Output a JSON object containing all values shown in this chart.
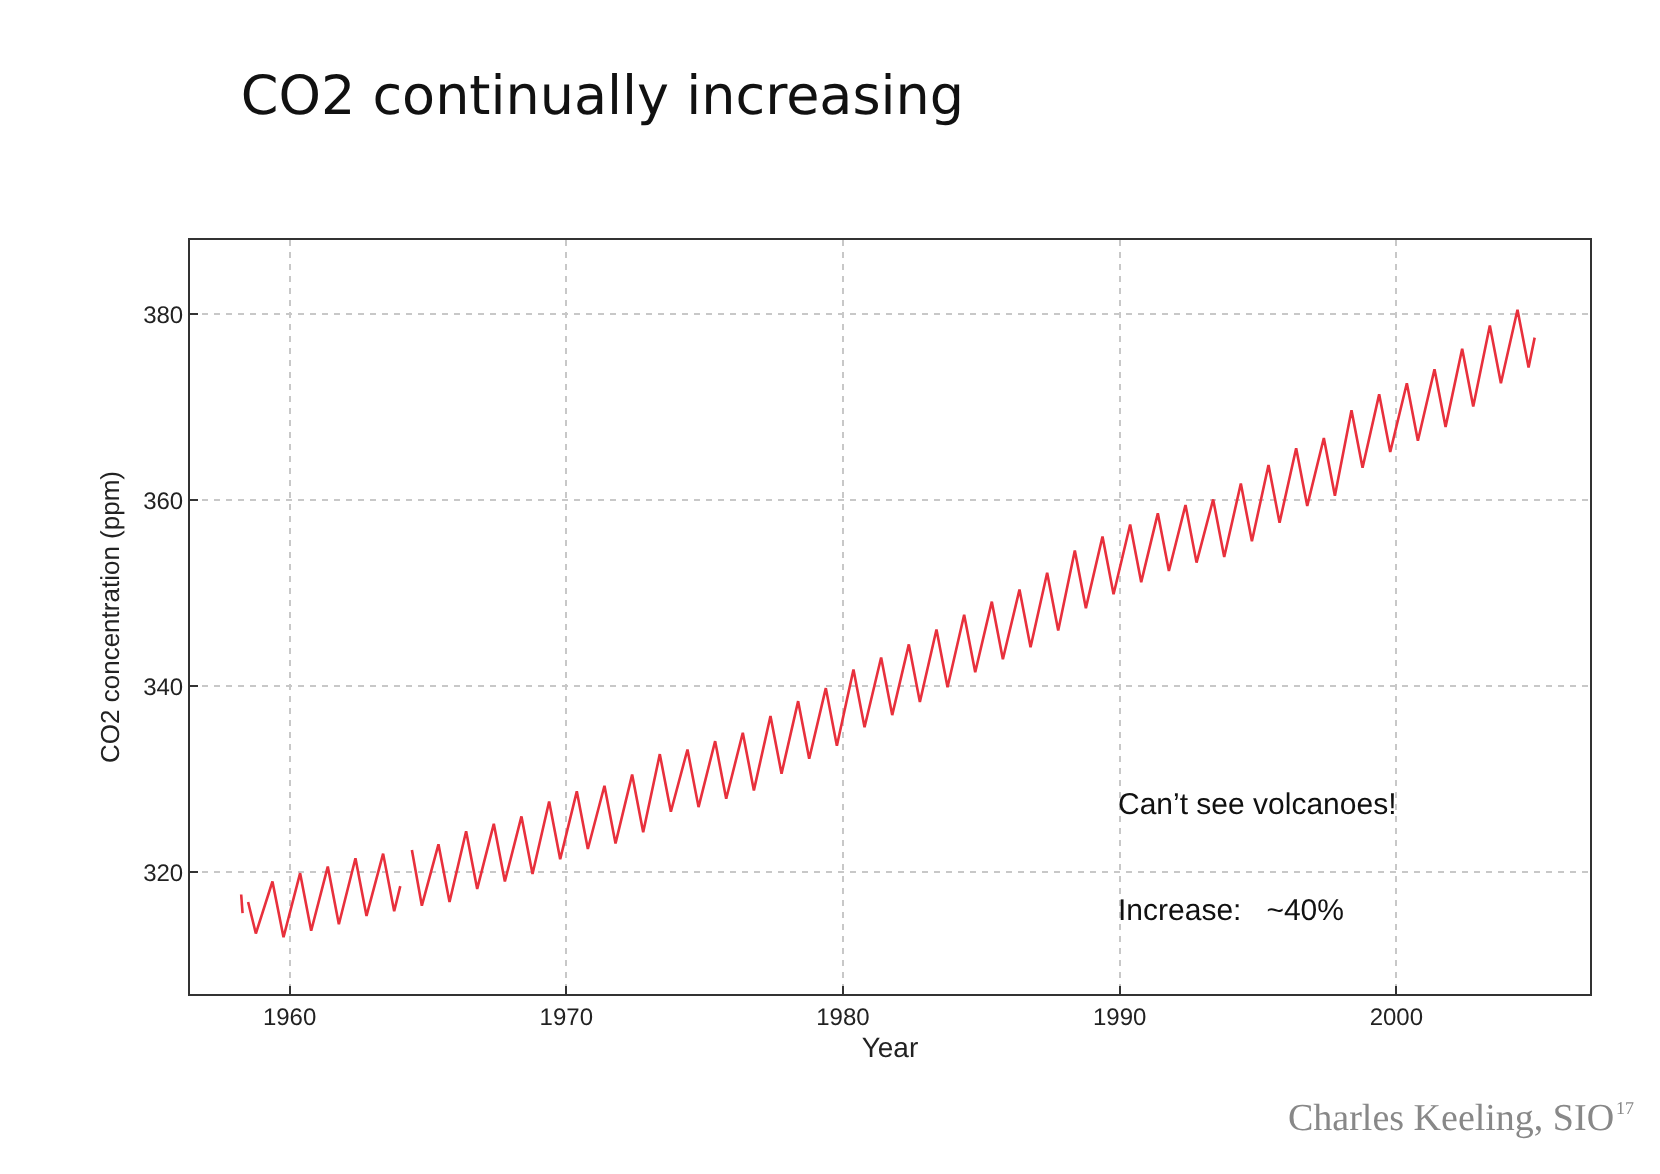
{
  "chart_data": {
    "type": "line",
    "title": "CO2 continually increasing",
    "xlabel": "Year",
    "ylabel": "CO2 concentration (ppm)",
    "annotations": [
      "Can’t see volcanoes!",
      "Increase:   ~40%",
      "Charles Keeling, SIO",
      "17"
    ],
    "xlim": [
      1956.4,
      2007
    ],
    "xticks": [
      1960,
      1970,
      1980,
      1990,
      2000
    ],
    "ylim": [
      306.9,
      388
    ],
    "yticks": [
      320,
      340,
      360,
      380
    ],
    "grid": true,
    "marker": "none",
    "line_style": "solid",
    "series": [
      {
        "color": "#e8303c",
        "x": [
          1958.25,
          1958.3,
          null,
          1958.5,
          1958.78,
          1959.38,
          1959.78,
          1960.38,
          1960.78,
          1961.38,
          1961.78,
          1962.38,
          1962.78,
          1963.38,
          1963.78,
          1964.0,
          null,
          1964.42,
          1964.78,
          1965.38,
          1965.78,
          1966.38,
          1966.78,
          1967.38,
          1967.78,
          1968.38,
          1968.78,
          1969.38,
          1969.78,
          1970.38,
          1970.78,
          1971.38,
          1971.78,
          1972.38,
          1972.78,
          1973.38,
          1973.78,
          1974.38,
          1974.78,
          1975.38,
          1975.78,
          1976.38,
          1976.78,
          1977.38,
          1977.78,
          1978.38,
          1978.78,
          1979.38,
          1979.78,
          1980.38,
          1980.78,
          1981.38,
          1981.78,
          1982.38,
          1982.78,
          1983.38,
          1983.78,
          1984.38,
          1984.78,
          1985.38,
          1985.78,
          1986.38,
          1986.78,
          1987.38,
          1987.78,
          1988.38,
          1988.78,
          1989.38,
          1989.78,
          1990.38,
          1990.78,
          1991.38,
          1991.78,
          1992.38,
          1992.78,
          1993.38,
          1993.78,
          1994.38,
          1994.78,
          1995.38,
          1995.78,
          1996.38,
          1996.78,
          1997.38,
          1997.78,
          1998.38,
          1998.78,
          1999.38,
          1999.78,
          2000.38,
          2000.78,
          2001.38,
          2001.78,
          2002.38,
          2002.78,
          2003.38,
          2003.78,
          2004.38,
          2004.78,
          2005.0
        ],
        "values": [
          317.6,
          315.6,
          null,
          316.8,
          313.4,
          319.0,
          313.0,
          319.9,
          313.7,
          320.6,
          314.4,
          321.5,
          315.3,
          322.0,
          315.8,
          318.5,
          null,
          322.4,
          316.4,
          323.0,
          316.8,
          324.4,
          318.2,
          325.2,
          319.0,
          326.0,
          319.8,
          327.6,
          321.4,
          328.7,
          322.5,
          329.3,
          323.1,
          330.5,
          324.3,
          332.7,
          326.5,
          333.2,
          327.0,
          334.1,
          327.9,
          335.0,
          328.8,
          336.8,
          330.6,
          338.4,
          332.2,
          339.8,
          333.6,
          341.8,
          335.6,
          343.1,
          336.9,
          344.5,
          338.3,
          346.1,
          339.9,
          347.7,
          341.5,
          349.1,
          342.9,
          350.4,
          344.2,
          352.2,
          346.0,
          354.6,
          348.4,
          356.1,
          349.9,
          357.4,
          351.2,
          358.6,
          352.4,
          359.5,
          353.3,
          360.1,
          353.9,
          361.8,
          355.6,
          363.8,
          357.6,
          365.6,
          359.4,
          366.7,
          360.5,
          369.7,
          363.5,
          371.4,
          365.2,
          372.6,
          366.4,
          374.1,
          367.9,
          376.3,
          370.1,
          378.8,
          372.6,
          380.5,
          374.3,
          377.5
        ]
      }
    ]
  }
}
